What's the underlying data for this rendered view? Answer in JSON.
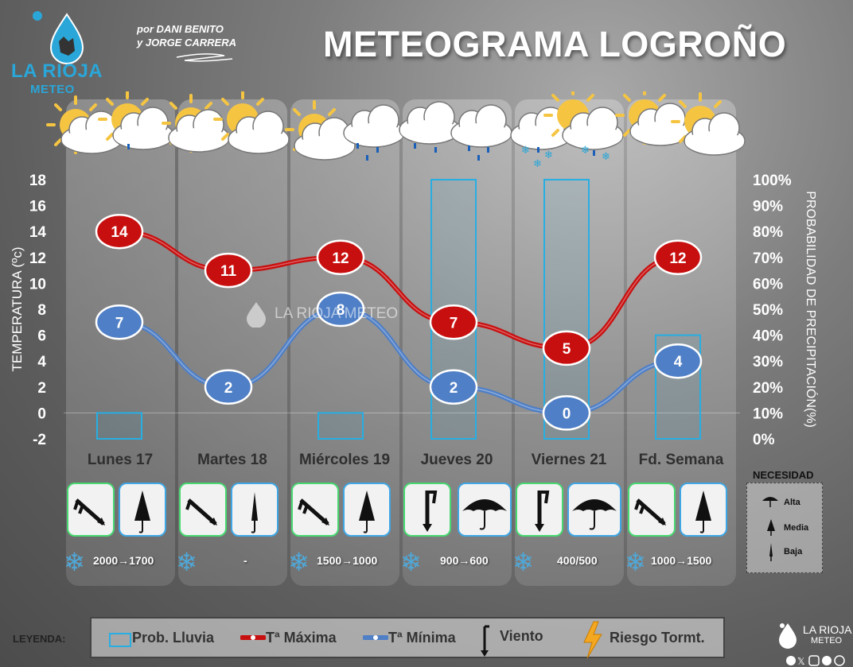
{
  "header": {
    "logo_line1": "LA RIOJA",
    "logo_line2": "METEO",
    "authors_line1": "por DANI BENITO",
    "authors_line2": "y JORGE CARRERA",
    "title": "METEOGRAMA LOGROÑO"
  },
  "watermark": "LA RIOJA METEO",
  "chart_data": {
    "type": "line",
    "categories": [
      "Lunes 17",
      "Martes 18",
      "Miércoles 19",
      "Jueves 20",
      "Viernes 21",
      "Fd. Semana"
    ],
    "series": [
      {
        "name": "Tª Máxima",
        "values": [
          14,
          11,
          12,
          7,
          5,
          12
        ],
        "color": "#c80f0f"
      },
      {
        "name": "Tª Mínima",
        "values": [
          7,
          2,
          8,
          2,
          0,
          4
        ],
        "color": "#4f7fc6"
      }
    ],
    "bars": {
      "name": "Prob. Lluvia",
      "values": [
        10,
        0,
        10,
        100,
        100,
        40
      ],
      "color": "#27aee3"
    },
    "ylabel": "TEMPERATURA (ºc)",
    "ylabel_right": "PROBABILIDAD DE PRECIPITACIÓN(%)",
    "ylim": [
      -2,
      18
    ],
    "y2lim": [
      0,
      100
    ],
    "yticks": [
      "18",
      "16",
      "14",
      "12",
      "10",
      "8",
      "6",
      "4",
      "2",
      "0",
      "-2"
    ],
    "y2ticks": [
      "100%",
      "90%",
      "80%",
      "70%",
      "60%",
      "50%",
      "40%",
      "30%",
      "20%",
      "10%",
      "0%"
    ],
    "grid": false
  },
  "days": [
    {
      "snow": "2000→1700",
      "wind": "arrow-icon",
      "umbrella": "closed-umbrella-icon"
    },
    {
      "snow": "-",
      "wind": "arrow-icon",
      "umbrella": "thin-umbrella-icon"
    },
    {
      "snow": "1500→1000",
      "wind": "arrow-icon",
      "umbrella": "closed-umbrella-icon"
    },
    {
      "snow": "900→600",
      "wind": "strong-wind-icon",
      "umbrella": "open-umbrella-icon"
    },
    {
      "snow": "400/500",
      "wind": "strong-wind-icon",
      "umbrella": "open-umbrella-icon"
    },
    {
      "snow": "1000→1500",
      "wind": "arrow-icon",
      "umbrella": "closed-umbrella-icon"
    }
  ],
  "necesidad": {
    "title": "NECESIDAD",
    "alta": "Alta",
    "media": "Media",
    "baja": "Baja"
  },
  "legend": {
    "label": "LEYENDA:",
    "rain": "Prob. Lluvia",
    "tmax": "Tª Máxima",
    "tmin": "Tª Mínima",
    "wind": "Viento",
    "storm": "Riesgo Tormt."
  },
  "footer_logo": {
    "line1": "LA RIOJA",
    "line2": "METEO"
  },
  "colors": {
    "max": "#c80f0f",
    "min": "#4f7fc6",
    "rain": "#27aee3",
    "wind_border": "#47d870",
    "umbrella_border": "#3fa7e6"
  }
}
